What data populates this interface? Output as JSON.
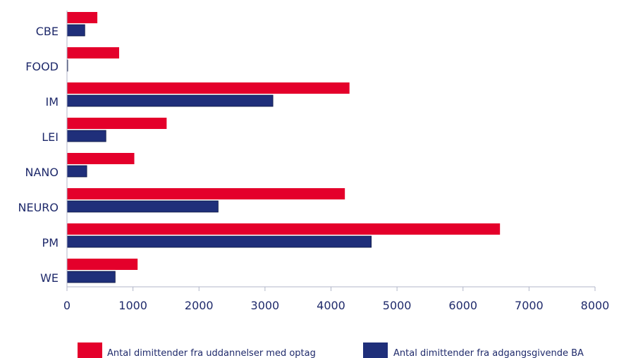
{
  "chart_data": {
    "type": "bar",
    "orientation": "horizontal",
    "categories": [
      "CBE",
      "FOOD",
      "IM",
      "LEI",
      "NANO",
      "NEURO",
      "PM",
      "WE"
    ],
    "series": [
      {
        "name": "Antal dimittender fra uddannelser med optag",
        "color": "#e4002b",
        "values": [
          460,
          790,
          4280,
          1510,
          1020,
          4210,
          6560,
          1070
        ]
      },
      {
        "name": "Antal dimittender fra adgangsgivende BA",
        "color": "#1f2f7a",
        "values": [
          270,
          10,
          3120,
          590,
          300,
          2290,
          4610,
          730
        ]
      }
    ],
    "xlim": [
      0,
      8000
    ],
    "xticks": [
      "0",
      "1000",
      "2000",
      "3000",
      "4000",
      "5000",
      "6000",
      "7000",
      "8000"
    ],
    "grid": false,
    "legend_position": "bottom"
  }
}
